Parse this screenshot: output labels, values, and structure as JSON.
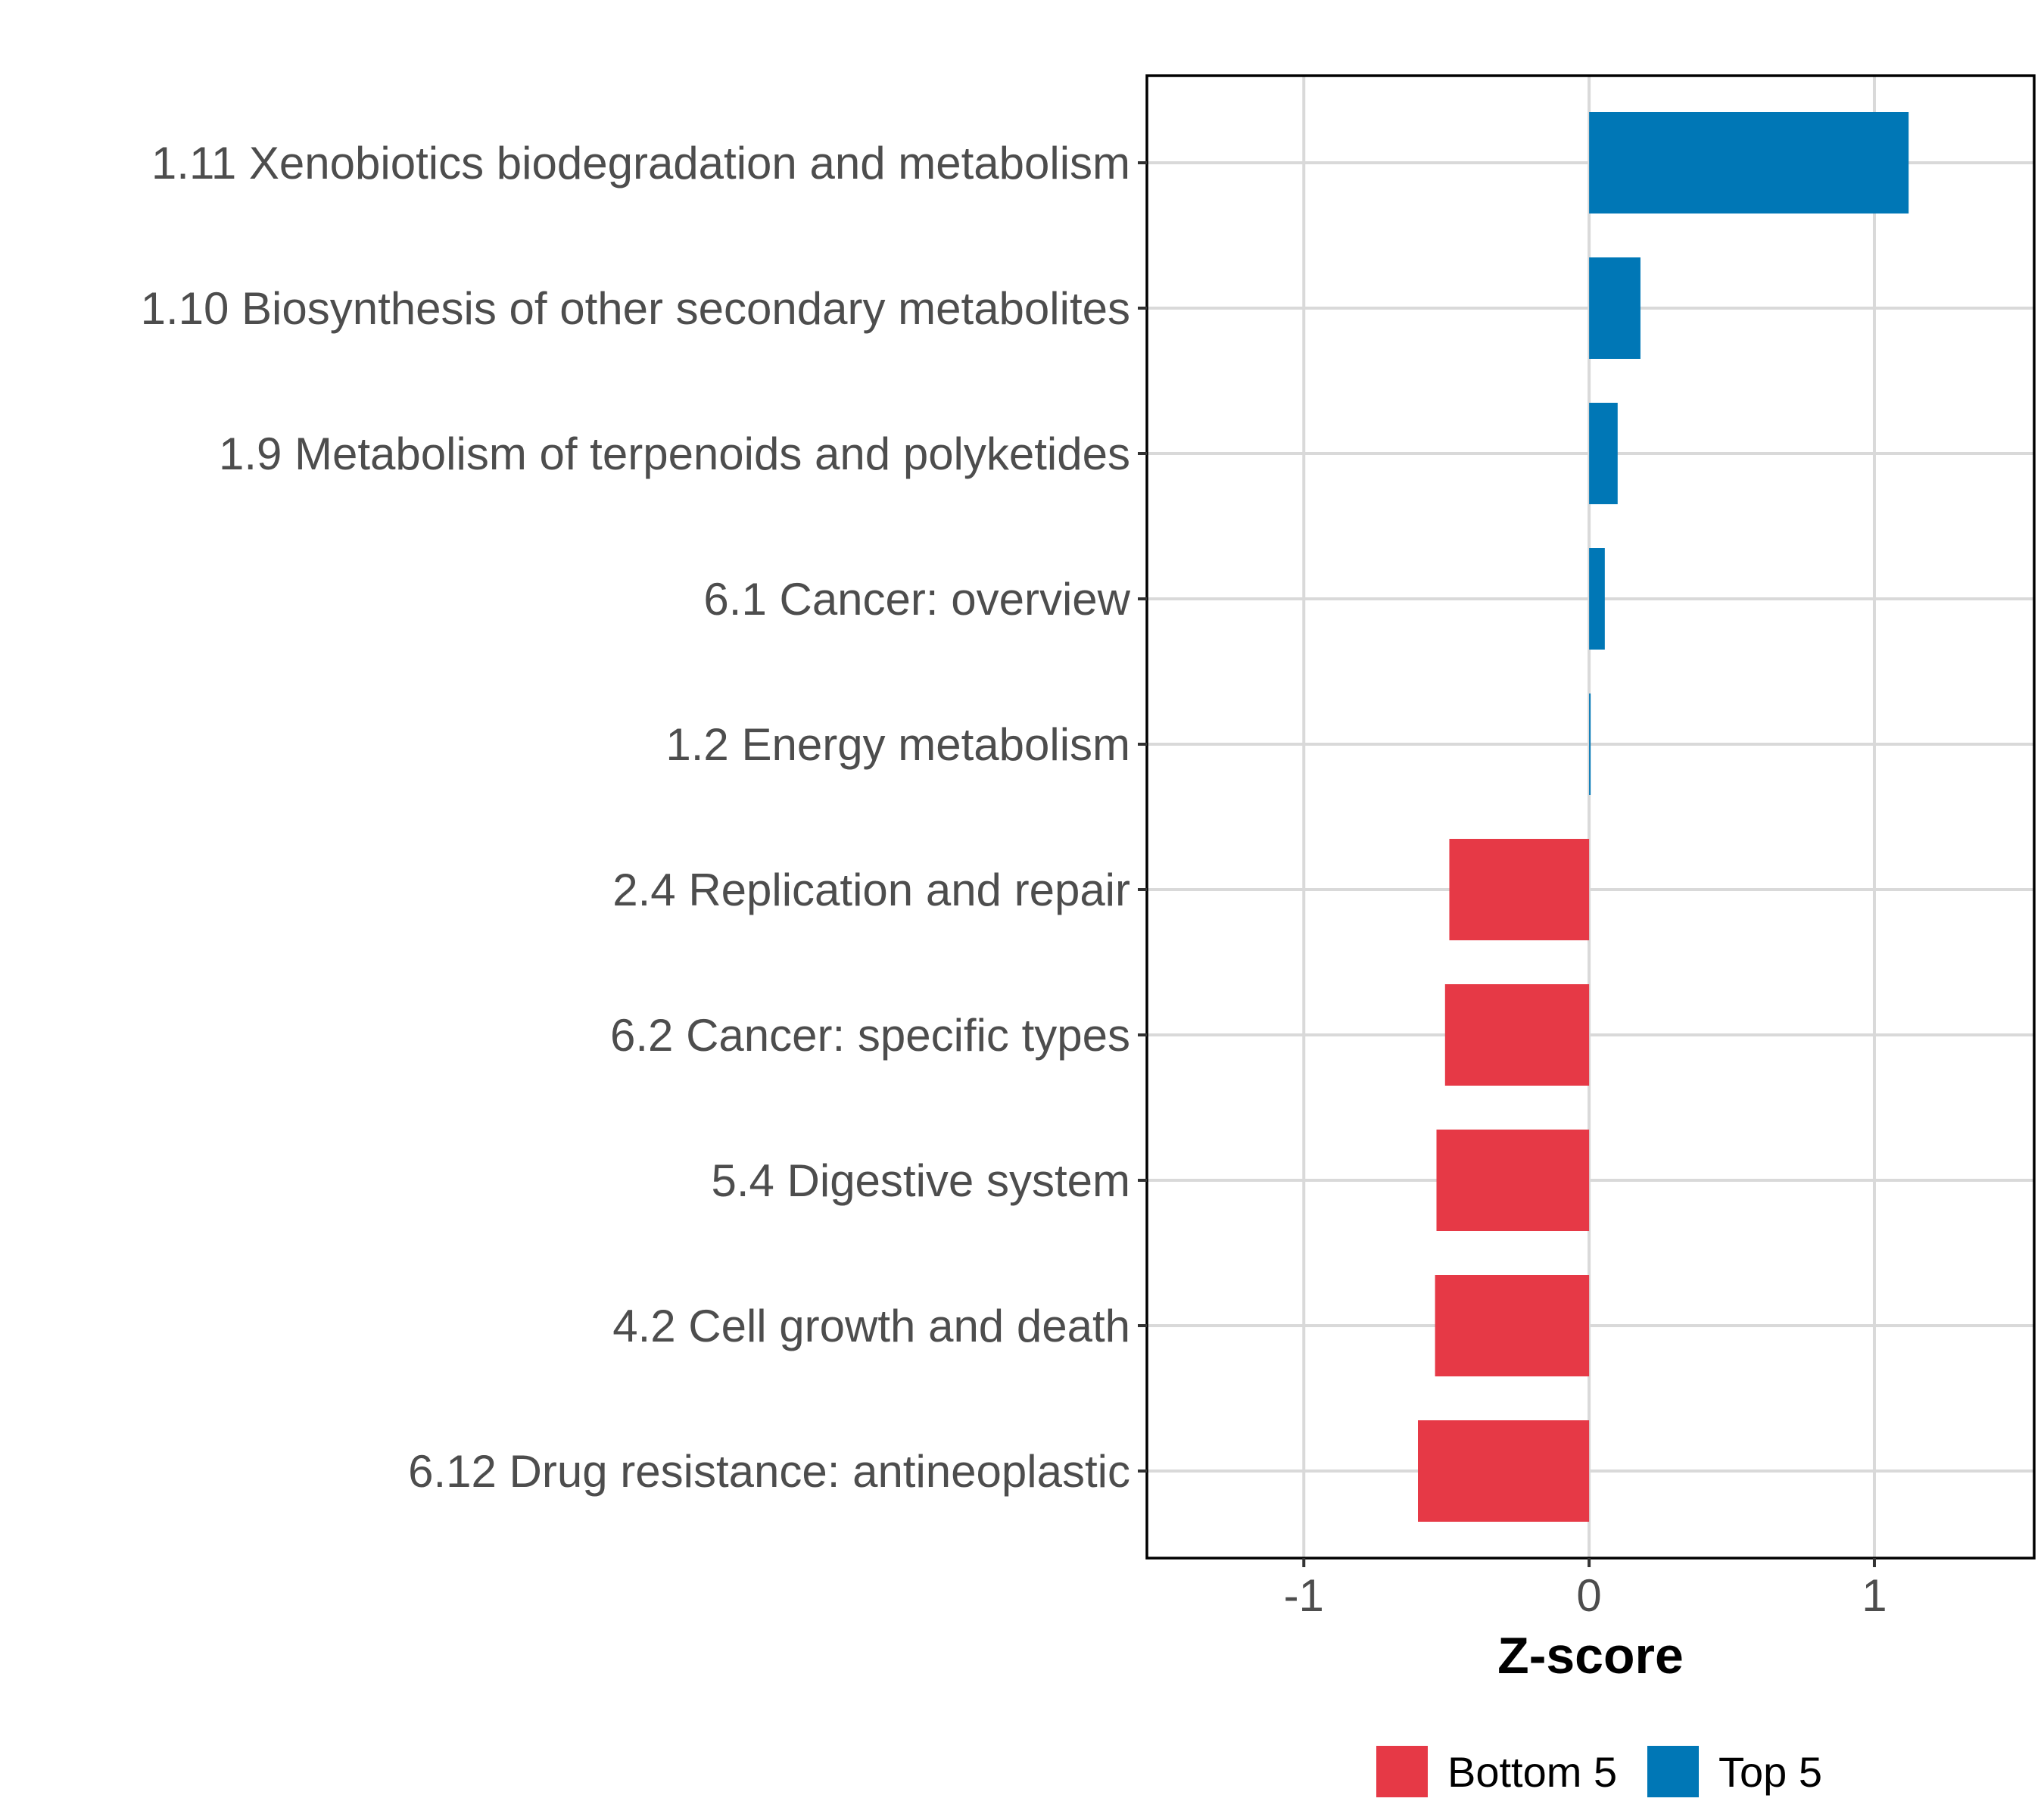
{
  "chart_data": {
    "type": "bar",
    "orientation": "horizontal",
    "title": "",
    "xlabel": "Z-score",
    "ylabel": "",
    "xlim": [
      -1.55,
      1.56
    ],
    "xticks": [
      -1,
      0,
      1
    ],
    "xtick_labels": [
      "-1",
      "0",
      "1"
    ],
    "grid": true,
    "legend_position": "bottom",
    "categories": [
      "1.11 Xenobiotics biodegradation and metabolism",
      "1.10 Biosynthesis of other secondary metabolites",
      "1.9 Metabolism of terpenoids and polyketides",
      "6.1 Cancer: overview",
      "1.2 Energy metabolism",
      "2.4 Replication and repair",
      "6.2 Cancer: specific types",
      "5.4 Digestive system",
      "4.2 Cell growth and death",
      "6.12 Drug resistance: antineoplastic"
    ],
    "values": [
      1.12,
      0.18,
      0.1,
      0.055,
      0.005,
      -0.49,
      -0.505,
      -0.535,
      -0.54,
      -0.6
    ],
    "groups": [
      "Top 5",
      "Top 5",
      "Top 5",
      "Top 5",
      "Top 5",
      "Bottom 5",
      "Bottom 5",
      "Bottom 5",
      "Bottom 5",
      "Bottom 5"
    ],
    "legend": [
      {
        "name": "Bottom 5",
        "color": "#E63946"
      },
      {
        "name": "Top 5",
        "color": "#0077B6"
      }
    ]
  }
}
